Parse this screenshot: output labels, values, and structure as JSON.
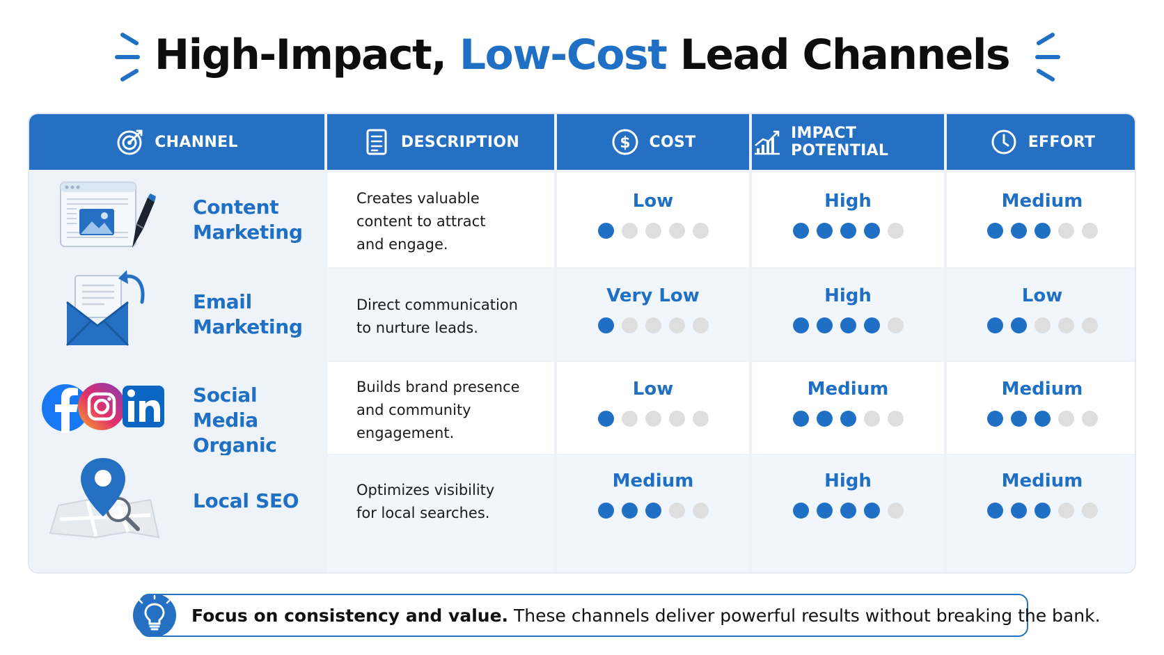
{
  "title": {
    "part1": "High-Impact, ",
    "accent": "Low-Cost",
    "part2": " Lead Channels"
  },
  "colors": {
    "accent": "#1f6fc4",
    "header_bg": "#2570c2",
    "dot_off": "#dedede"
  },
  "headers": [
    {
      "label": "CHANNEL",
      "icon": "target-icon"
    },
    {
      "label": "DESCRIPTION",
      "icon": "document-icon"
    },
    {
      "label": "COST",
      "icon": "dollar-icon"
    },
    {
      "label": "IMPACT POTENTIAL",
      "icon": "growth-chart-icon"
    },
    {
      "label": "EFFORT",
      "icon": "clock-icon"
    }
  ],
  "rows": [
    {
      "channel": [
        "Content",
        "Marketing"
      ],
      "icon": "content-window-pen-icon",
      "description": [
        "Creates valuable",
        "content to attract",
        "and engage."
      ],
      "cost": {
        "label": "Low",
        "level": 1
      },
      "impact": {
        "label": "High",
        "level": 4
      },
      "effort": {
        "label": "Medium",
        "level": 3
      }
    },
    {
      "channel": [
        "Email",
        "Marketing"
      ],
      "icon": "email-envelope-icon",
      "description": [
        "Direct communication",
        "to nurture leads."
      ],
      "cost": {
        "label": "Very Low",
        "level": 1
      },
      "impact": {
        "label": "High",
        "level": 4
      },
      "effort": {
        "label": "Low",
        "level": 2
      }
    },
    {
      "channel": [
        "Social Media",
        "Organic"
      ],
      "icon": "social-logos-icon",
      "description": [
        "Builds brand presence",
        "and community",
        "engagement."
      ],
      "cost": {
        "label": "Low",
        "level": 1
      },
      "impact": {
        "label": "Medium",
        "level": 3
      },
      "effort": {
        "label": "Medium",
        "level": 3
      }
    },
    {
      "channel": [
        "Local SEO"
      ],
      "icon": "map-pin-icon",
      "description": [
        "Optimizes visibility",
        "for local searches."
      ],
      "cost": {
        "label": "Medium",
        "level": 3
      },
      "impact": {
        "label": "High",
        "level": 4
      },
      "effort": {
        "label": "Medium",
        "level": 3
      }
    }
  ],
  "dot_scale_max": 5,
  "footer": {
    "bold": "Focus on consistency and value.",
    "rest": " These channels deliver powerful results without breaking the bank.",
    "icon": "lightbulb-icon"
  }
}
